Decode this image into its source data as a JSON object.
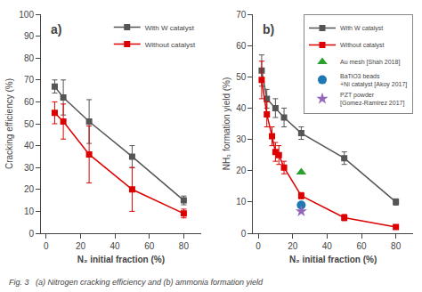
{
  "chart_data": [
    {
      "type": "line",
      "title": "a)",
      "xlabel": "N₂ initial fraction (%)",
      "ylabel": "Cracking efficiency (%)",
      "xlim": [
        -3,
        90
      ],
      "ylim": [
        0,
        100
      ],
      "xticks": [
        0,
        20,
        40,
        60,
        80
      ],
      "yticks": [
        0,
        10,
        20,
        30,
        40,
        50,
        60,
        70,
        80,
        90,
        100
      ],
      "grid": false,
      "legend": "upper right",
      "annotations": [
        "Fig. 3   (a) Nitrogen cracking efficiency and (b) ammonia formation yield"
      ],
      "series": [
        {
          "name": "With W catalyst",
          "color": "#555555",
          "marker": "square",
          "line_style": "solid",
          "x": [
            5,
            10,
            25,
            50,
            80
          ],
          "values": [
            67,
            62,
            51,
            35,
            15
          ],
          "error": [
            3,
            8,
            10,
            5,
            2
          ]
        },
        {
          "name": "Without catalyst",
          "color": "#dd0000",
          "marker": "square",
          "line_style": "solid",
          "x": [
            5,
            10,
            25,
            50,
            80
          ],
          "values": [
            55,
            51,
            36,
            20,
            9
          ],
          "error": [
            5,
            8,
            13,
            10,
            2
          ]
        }
      ]
    },
    {
      "type": "line",
      "title": "b)",
      "xlabel": "N₂ initial fraction (%)",
      "ylabel": "NH₃ formation yield (%)",
      "xlim": [
        -3,
        90
      ],
      "ylim": [
        0,
        70
      ],
      "xticks": [
        0,
        20,
        40,
        60,
        80
      ],
      "yticks": [
        0,
        10,
        20,
        30,
        40,
        50,
        60,
        70
      ],
      "grid": false,
      "legend": "upper right",
      "series": [
        {
          "name": "With W catalyst",
          "color": "#555555",
          "marker": "square",
          "line_style": "solid",
          "x": [
            2,
            5,
            10,
            15,
            25,
            50,
            80
          ],
          "values": [
            52,
            43,
            40,
            37,
            32,
            24,
            10
          ],
          "error": [
            5,
            3,
            3,
            3,
            2,
            2,
            1
          ]
        },
        {
          "name": "Without catalyst",
          "color": "#dd0000",
          "marker": "square",
          "line_style": "solid",
          "x": [
            2,
            5,
            8,
            10,
            12,
            15,
            25,
            50,
            80
          ],
          "values": [
            49,
            38,
            31,
            26,
            25,
            21,
            12,
            5,
            2
          ],
          "error": [
            6,
            4,
            3,
            3,
            3,
            2,
            1,
            1,
            0.5
          ]
        },
        {
          "name": "Au mesh [Shah 2018]",
          "type": "scatter",
          "color": "#2ca02c",
          "marker": "triangle",
          "x": [
            25
          ],
          "values": [
            19.5
          ]
        },
        {
          "name": "BaTiO3 beads\n+Ni catalyst [Akoy 2017]",
          "type": "scatter",
          "color": "#1f77b4",
          "marker": "circle",
          "x": [
            25
          ],
          "values": [
            9.0
          ]
        },
        {
          "name": "PZT powder\n[Gomez-Ramirez 2017]",
          "type": "scatter",
          "color": "#9467bd",
          "marker": "star",
          "x": [
            25
          ],
          "values": [
            7.0
          ]
        }
      ]
    }
  ]
}
